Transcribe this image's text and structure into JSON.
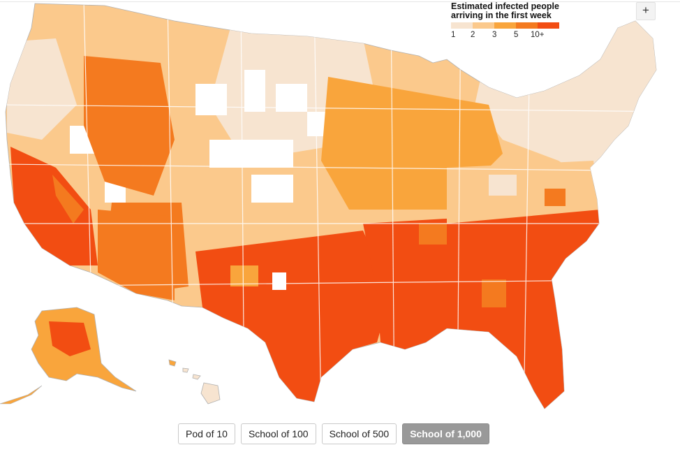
{
  "legend": {
    "title": "Estimated infected people arriving in the first week",
    "labels": [
      "1",
      "2",
      "3",
      "5",
      "10+"
    ],
    "colors": [
      "#f7e4d0",
      "#fbc98c",
      "#f9a53c",
      "#f47a1f",
      "#f24d12"
    ]
  },
  "zoom": {
    "label": "+"
  },
  "buttons": [
    {
      "label": "Pod of 10",
      "active": false
    },
    {
      "label": "School of 100",
      "active": false
    },
    {
      "label": "School of 500",
      "active": false
    },
    {
      "label": "School of 1,000",
      "active": true
    }
  ]
}
